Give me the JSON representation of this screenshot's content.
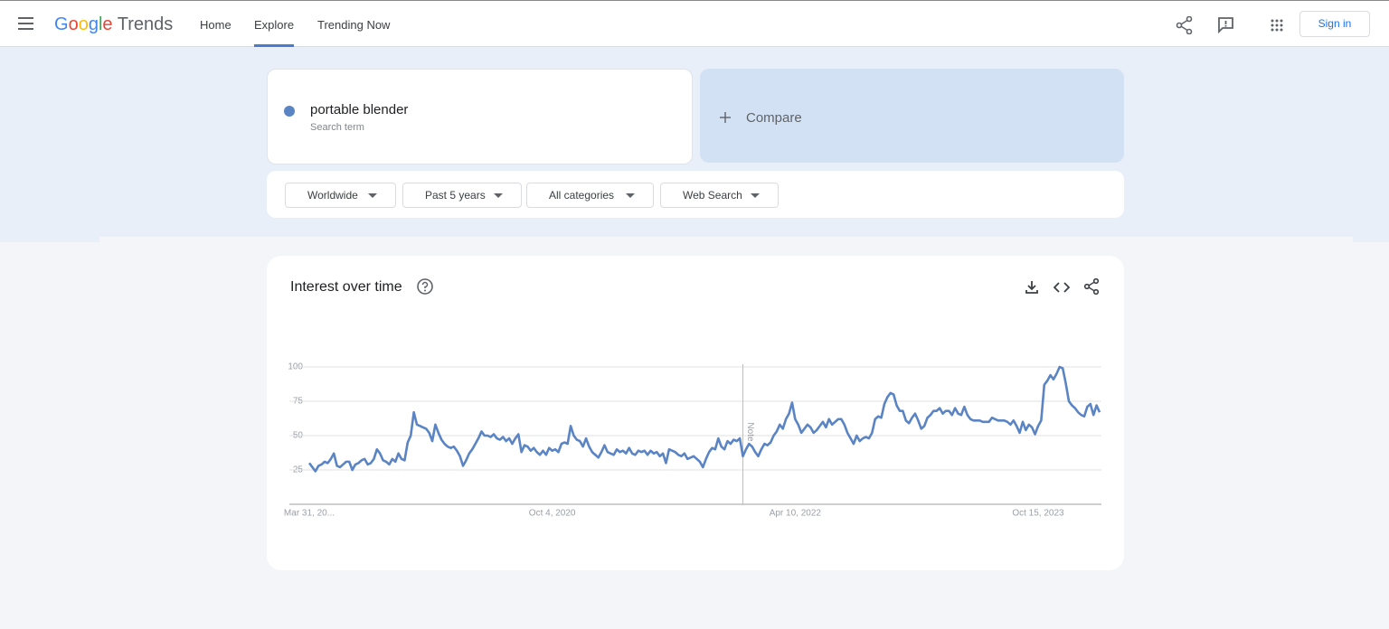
{
  "header": {
    "logo": "Google",
    "product": "Trends",
    "nav": [
      "Home",
      "Explore",
      "Trending Now"
    ],
    "sign_in": "Sign in"
  },
  "search": {
    "term": "portable blender",
    "term_type": "Search term",
    "compare": "Compare"
  },
  "filters": [
    "Worldwide",
    "Past 5 years",
    "All categories",
    "Web Search"
  ],
  "chart_data": {
    "type": "line",
    "title": "Interest over time",
    "annotation": "Note",
    "color": "#5a84c4",
    "ylim": [
      0,
      100
    ],
    "yticks": [
      25,
      50,
      75,
      100
    ],
    "grid": true,
    "categories": [
      "Mar 31, 20...",
      null,
      null,
      null,
      null,
      null,
      null,
      null,
      null,
      null,
      null,
      null,
      null,
      null,
      null,
      null,
      null,
      null,
      null,
      null,
      null,
      null,
      null,
      null,
      null,
      null,
      null,
      null,
      null,
      null,
      null,
      null,
      null,
      null,
      null,
      null,
      null,
      null,
      null,
      null,
      null,
      null,
      null,
      null,
      null,
      null,
      null,
      null,
      null,
      null,
      null,
      null,
      null,
      null,
      null,
      null,
      null,
      null,
      null,
      null,
      null,
      null,
      null,
      null,
      null,
      null,
      null,
      null,
      null,
      null,
      null,
      null,
      null,
      null,
      null,
      null,
      null,
      null,
      null,
      "Oct 4, 2020",
      null,
      null,
      null,
      null,
      null,
      null,
      null,
      null,
      null,
      null,
      null,
      null,
      null,
      null,
      null,
      null,
      null,
      null,
      null,
      null,
      null,
      null,
      null,
      null,
      null,
      null,
      null,
      null,
      null,
      null,
      null,
      null,
      null,
      null,
      null,
      null,
      null,
      null,
      null,
      null,
      null,
      null,
      null,
      null,
      null,
      null,
      null,
      null,
      null,
      null,
      null,
      null,
      null,
      null,
      null,
      null,
      null,
      null,
      null,
      null,
      null,
      null,
      null,
      null,
      null,
      null,
      null,
      null,
      null,
      null,
      null,
      null,
      null,
      null,
      null,
      null,
      null,
      null,
      "Apr 10, 2022",
      null,
      null,
      null,
      null,
      null,
      null,
      null,
      null,
      null,
      null,
      null,
      null,
      null,
      null,
      null,
      null,
      null,
      null,
      null,
      null,
      null,
      null,
      null,
      null,
      null,
      null,
      null,
      null,
      null,
      null,
      null,
      null,
      null,
      null,
      null,
      null,
      null,
      null,
      null,
      null,
      null,
      null,
      null,
      null,
      null,
      null,
      null,
      null,
      null,
      null,
      null,
      null,
      null,
      null,
      null,
      null,
      null,
      null,
      null,
      null,
      null,
      null,
      null,
      null,
      null,
      null,
      null,
      null,
      null,
      null,
      null,
      null,
      null,
      null,
      null,
      null,
      null,
      null,
      "Oct 15, 2023",
      null,
      null,
      null,
      null,
      null,
      null,
      null,
      null,
      null,
      null,
      null,
      null,
      null,
      null,
      null,
      null,
      null,
      null,
      null,
      null
    ],
    "values": [
      30,
      27,
      24,
      28,
      29,
      31,
      30,
      33,
      37,
      28,
      27,
      29,
      31,
      31,
      25,
      29,
      30,
      32,
      33,
      29,
      30,
      33,
      40,
      37,
      32,
      31,
      29,
      33,
      31,
      37,
      33,
      32,
      45,
      50,
      67,
      58,
      57,
      56,
      55,
      52,
      46,
      58,
      52,
      47,
      44,
      42,
      41,
      42,
      39,
      35,
      28,
      32,
      37,
      40,
      44,
      48,
      53,
      50,
      50,
      49,
      51,
      48,
      47,
      49,
      46,
      48,
      44,
      48,
      51,
      38,
      43,
      42,
      39,
      41,
      38,
      36,
      39,
      36,
      41,
      39,
      40,
      38,
      44,
      45,
      44,
      57,
      50,
      47,
      46,
      42,
      48,
      42,
      38,
      36,
      34,
      38,
      43,
      38,
      37,
      36,
      40,
      38,
      39,
      37,
      41,
      37,
      36,
      39,
      38,
      39,
      36,
      39,
      37,
      38,
      35,
      37,
      30,
      40,
      39,
      38,
      36,
      35,
      37,
      33,
      34,
      35,
      33,
      31,
      27,
      33,
      38,
      41,
      40,
      48,
      42,
      40,
      46,
      44,
      47,
      46,
      48,
      35,
      40,
      44,
      42,
      38,
      35,
      40,
      44,
      43,
      45,
      50,
      53,
      58,
      55,
      62,
      66,
      74,
      62,
      58,
      52,
      55,
      58,
      56,
      52,
      54,
      57,
      60,
      56,
      62,
      58,
      60,
      62,
      62,
      58,
      52,
      48,
      44,
      50,
      46,
      48,
      49,
      48,
      52,
      62,
      64,
      63,
      73,
      78,
      81,
      80,
      72,
      68,
      68,
      61,
      59,
      63,
      66,
      61,
      55,
      57,
      63,
      65,
      68,
      68,
      70,
      66,
      68,
      68,
      65,
      70,
      66,
      65,
      71,
      65,
      62,
      61,
      61,
      61,
      60,
      60,
      60,
      63,
      62,
      61,
      61,
      61,
      60,
      58,
      61,
      57,
      52,
      60,
      54,
      58,
      56,
      51,
      57,
      61,
      87,
      90,
      94,
      91,
      95,
      100,
      99,
      88,
      75,
      72,
      70,
      67,
      65,
      64,
      71,
      73,
      65,
      72,
      67
    ]
  }
}
